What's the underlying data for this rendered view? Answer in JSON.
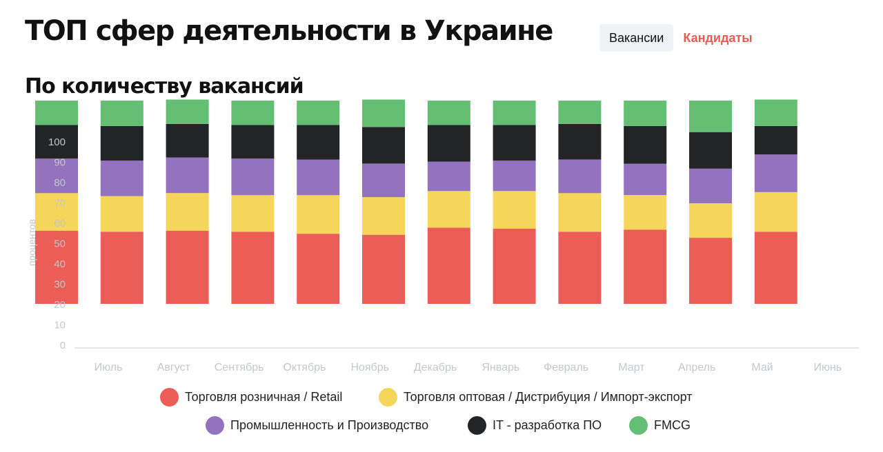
{
  "page": {
    "title": "ТОП сфер деятельности в Украине",
    "subtitle": "По количеству вакансий",
    "tabs": {
      "vacancies": "Вакансии",
      "candidates": "Кандидаты"
    }
  },
  "colors": {
    "retail": "#eb5d57",
    "wholesale": "#f5d65a",
    "industry": "#9473be",
    "it": "#222426",
    "fmcg": "#64be74",
    "axis_text": "#c4c6c9",
    "axis_line": "#dcdde0",
    "candidates_tab": "#e85b53"
  },
  "chart_data": {
    "type": "bar",
    "stacked": true,
    "ylabel": "процентов",
    "ylim": [
      0,
      105
    ],
    "yticks": [
      0,
      10,
      20,
      30,
      40,
      50,
      60,
      70,
      80,
      90,
      100
    ],
    "categories": [
      "Июль",
      "Август",
      "Сентябрь",
      "Октябрь",
      "Ноябрь",
      "Декабрь",
      "Январь",
      "Февраль",
      "Март",
      "Апрель",
      "Май",
      "Июнь"
    ],
    "baseline": 20,
    "series": [
      {
        "name": "Торговля розничная / Retail",
        "color_key": "retail",
        "values": [
          36,
          35.5,
          36,
          35.5,
          34.5,
          34,
          37.5,
          37,
          35.5,
          36.5,
          32.5,
          35.5
        ]
      },
      {
        "name": "Торговля оптовая / Дистрибуция / Импорт-экспорт",
        "color_key": "wholesale",
        "values": [
          18.5,
          17.5,
          18.5,
          18,
          19,
          18.5,
          18,
          18.5,
          19,
          17,
          17,
          19.5
        ]
      },
      {
        "name": "Промышленность и Производство",
        "color_key": "industry",
        "values": [
          17,
          17.5,
          17.5,
          18,
          17.5,
          16.5,
          14.5,
          15,
          16.5,
          15.5,
          17,
          18.5
        ]
      },
      {
        "name": "IT - разработка ПО",
        "color_key": "it",
        "values": [
          16.5,
          17,
          16.5,
          16.5,
          17,
          18,
          18,
          17.5,
          17.5,
          18.5,
          18,
          14
        ]
      },
      {
        "name": "FMCG",
        "color_key": "fmcg",
        "values": [
          12,
          12.5,
          12,
          12,
          12,
          13.5,
          12,
          12,
          11.5,
          12.5,
          15.5,
          13
        ]
      }
    ],
    "legend_position": "bottom",
    "grid": false
  }
}
